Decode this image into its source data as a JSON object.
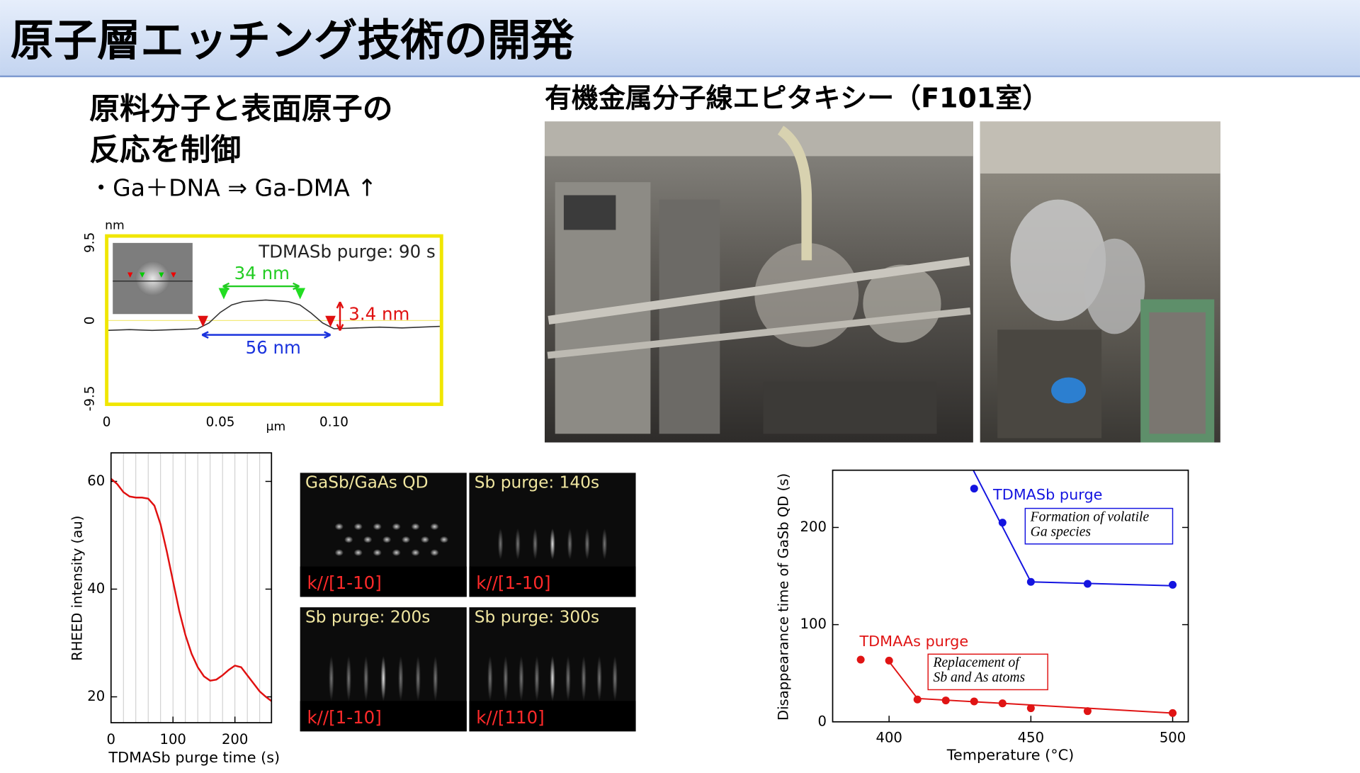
{
  "slide": {
    "title": "原子層エッチング技術の開発",
    "subtitle_lines": [
      "原料分子と表面原子の",
      "反応を制御"
    ],
    "reaction": "・Ga＋DNA ⇒ Ga-DMA ↑",
    "photo_caption": "有機金属分子線エピタキシー（F101室）",
    "rheed_panels": [
      {
        "label": "GaSb/GaAs QD",
        "direction": "k//[1-10]"
      },
      {
        "label": "Sb purge: 140s",
        "direction": "k//[1-10]"
      },
      {
        "label": "Sb purge: 200s",
        "direction": "k//[1-10]"
      },
      {
        "label": "Sb purge: 300s",
        "direction": "k//[110]"
      }
    ]
  },
  "chart_data": [
    {
      "type": "line",
      "y_unit": "nm",
      "x_unit": "μm",
      "annotations": [
        "TDMASb purge: 90 s",
        "34 nm",
        "56 nm",
        "3.4 nm"
      ],
      "xlim": [
        0,
        0.1473
      ],
      "ylim": [
        -10.2,
        10.3
      ],
      "xticks": [
        0,
        0.05,
        {
          "value": 0.1,
          "label": "0.10"
        }
      ],
      "yticks": [
        -9.5,
        0,
        9.5
      ],
      "series": [
        {
          "color": "#333333",
          "x": [
            0,
            0.01,
            0.02,
            0.03,
            0.04,
            0.045,
            0.05,
            0.055,
            0.06,
            0.07,
            0.08,
            0.085,
            0.09,
            0.095,
            0.1,
            0.11,
            0.12,
            0.13,
            0.147
          ],
          "values": [
            -1.2,
            -1.1,
            -1.2,
            -1.1,
            -1.0,
            -0.3,
            1.0,
            1.9,
            2.3,
            2.5,
            2.3,
            1.9,
            0.9,
            -0.3,
            -1.0,
            -0.9,
            -0.8,
            -0.9,
            -0.7
          ]
        }
      ]
    },
    {
      "type": "line",
      "xlabel": "TDMASb purge time (s)",
      "ylabel": "RHEED intensity (au)",
      "xlim": [
        0,
        259
      ],
      "ylim": [
        15.2,
        65.3
      ],
      "xticks": [
        0,
        100,
        200
      ],
      "yticks": [
        20,
        40,
        60
      ],
      "xgrid": [
        20,
        40,
        60,
        80,
        100,
        120,
        140,
        160,
        180,
        200,
        220,
        240
      ],
      "series": [
        {
          "color": "#e01010",
          "x": [
            0,
            10,
            20,
            30,
            40,
            50,
            60,
            70,
            80,
            90,
            100,
            110,
            120,
            130,
            140,
            150,
            160,
            170,
            180,
            190,
            200,
            210,
            220,
            230,
            240,
            250,
            259
          ],
          "values": [
            60.5,
            59.5,
            58,
            57.2,
            57,
            57,
            56.8,
            55.5,
            52,
            47,
            41.5,
            36,
            31.5,
            28,
            25.5,
            23.8,
            23,
            23.2,
            24,
            25,
            25.8,
            25.5,
            24,
            22.5,
            21,
            20,
            19.2
          ]
        }
      ]
    },
    {
      "type": "scatter",
      "xlabel": "Temperature (°C)",
      "ylabel": "Disappearance time of GaSb QD (s)",
      "xlim": [
        380.1,
        505.5
      ],
      "ylim": [
        0,
        258.9
      ],
      "xticks": [
        400,
        450,
        500
      ],
      "yticks": [
        0,
        100,
        200
      ],
      "series": [
        {
          "name": "TDMASb purge",
          "color": "#1414e0",
          "note": [
            "Formation of volatile",
            "Ga species"
          ],
          "x": [
            430,
            440,
            450,
            470,
            500
          ],
          "values": [
            240,
            205,
            144,
            142,
            141
          ],
          "fit_x": [
            429.7,
            450,
            500
          ],
          "fit_values": [
            258.9,
            144,
            140
          ]
        },
        {
          "name": "TDMAAs purge",
          "color": "#e01414",
          "note": [
            "Replacement of",
            "Sb and As atoms"
          ],
          "x": [
            390,
            400,
            410,
            420,
            430,
            440,
            450,
            470,
            500
          ],
          "values": [
            64,
            63,
            23,
            22,
            21,
            19,
            14,
            11,
            9
          ],
          "fit_x": [
            400,
            410,
            500
          ],
          "fit_values": [
            62,
            24,
            9
          ]
        }
      ]
    }
  ]
}
